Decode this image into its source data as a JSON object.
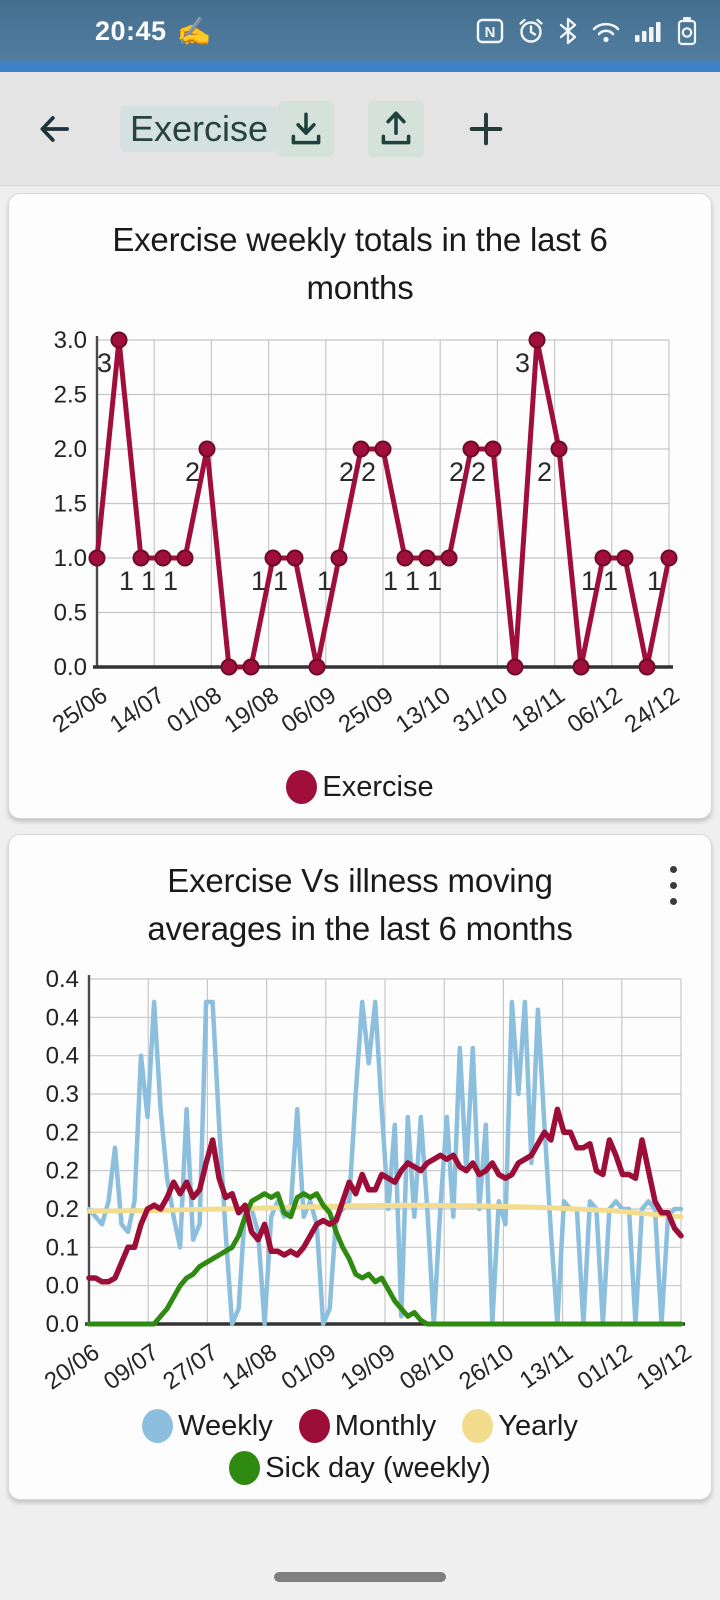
{
  "status_bar": {
    "time": "20:45",
    "hand_icon": "✍",
    "icons": [
      "nfc",
      "alarm",
      "bluetooth",
      "wifi",
      "signal",
      "battery"
    ],
    "bg_color": "#4f7b9e",
    "accent_color": "#3c80c5"
  },
  "app_bar": {
    "title": "Exercise",
    "back_icon": "arrow-left",
    "actions": [
      "download",
      "export",
      "add"
    ]
  },
  "chart_data": [
    {
      "type": "line",
      "title": "Exercise weekly totals in the last 6 months",
      "ylim": [
        0,
        3
      ],
      "y_ticks": [
        3.0,
        2.5,
        2.0,
        1.5,
        1.0,
        0.5,
        0.0
      ],
      "y_tick_labels": [
        "3.0",
        "2.5",
        "2.0",
        "1.5",
        "1.0",
        "0.5",
        "0.0"
      ],
      "x_tick_labels": [
        "25/06",
        "14/07",
        "01/08",
        "19/08",
        "06/09",
        "25/09",
        "13/10",
        "31/10",
        "18/11",
        "06/12",
        "24/12"
      ],
      "grid": true,
      "legend_position": "bottom",
      "point_markers": true,
      "value_labels_on_points": true,
      "series": [
        {
          "name": "Exercise",
          "color": "#a00e3b",
          "values": [
            1,
            3,
            1,
            1,
            1,
            2,
            0,
            0,
            1,
            1,
            0,
            1,
            2,
            2,
            1,
            1,
            1,
            2,
            2,
            0,
            3,
            2,
            0,
            1,
            1,
            0,
            1
          ]
        }
      ]
    },
    {
      "type": "line",
      "title": "Exercise Vs illness moving averages in the last 6 months",
      "ylim": [
        0,
        0.47
      ],
      "y_gridline_values": [
        0.45,
        0.4,
        0.35,
        0.3,
        0.25,
        0.2,
        0.15,
        0.1,
        0.05,
        0.0
      ],
      "y_tick_labels": [
        "0.4",
        "0.4",
        "0.4",
        "0.3",
        "0.2",
        "0.2",
        "0.2",
        "0.1",
        "0.0",
        "0.0"
      ],
      "x_tick_labels": [
        "20/06",
        "09/07",
        "27/07",
        "14/08",
        "01/09",
        "19/09",
        "08/10",
        "26/10",
        "13/11",
        "01/12",
        "19/12"
      ],
      "x_days_range": [
        0,
        182
      ],
      "grid": true,
      "legend_position": "bottom",
      "point_markers": false,
      "draw_order": [
        0,
        2,
        3,
        1
      ],
      "series": [
        {
          "name": "Weekly",
          "color": "#8cbedd",
          "width": 4.5,
          "step_days": 2,
          "values": [
            0.15,
            0.14,
            0.13,
            0.16,
            0.23,
            0.13,
            0.12,
            0.16,
            0.35,
            0.27,
            0.42,
            0.28,
            0.19,
            0.14,
            0.1,
            0.28,
            0.11,
            0.13,
            0.42,
            0.42,
            0.26,
            0.12,
            0.0,
            0.02,
            0.15,
            0.15,
            0.12,
            0.0,
            0.14,
            0.16,
            0.14,
            0.15,
            0.28,
            0.14,
            0.16,
            0.13,
            0.0,
            0.02,
            0.14,
            0.15,
            0.16,
            0.3,
            0.42,
            0.34,
            0.42,
            0.28,
            0.15,
            0.26,
            0.01,
            0.27,
            0.14,
            0.27,
            0.15,
            0.0,
            0.15,
            0.27,
            0.14,
            0.36,
            0.2,
            0.36,
            0.15,
            0.26,
            0.0,
            0.16,
            0.13,
            0.42,
            0.3,
            0.42,
            0.21,
            0.41,
            0.26,
            0.12,
            0.0,
            0.16,
            0.15,
            0.15,
            0.0,
            0.16,
            0.15,
            0.0,
            0.15,
            0.16,
            0.15,
            0.15,
            0.0,
            0.15,
            0.16,
            0.15,
            0.0,
            0.14,
            0.15,
            0.15
          ]
        },
        {
          "name": "Monthly",
          "color": "#9c0e38",
          "width": 5.5,
          "step_days": 2,
          "values": [
            0.06,
            0.06,
            0.055,
            0.055,
            0.06,
            0.08,
            0.1,
            0.1,
            0.13,
            0.15,
            0.155,
            0.15,
            0.165,
            0.185,
            0.17,
            0.185,
            0.165,
            0.175,
            0.21,
            0.24,
            0.19,
            0.165,
            0.17,
            0.145,
            0.155,
            0.12,
            0.11,
            0.13,
            0.095,
            0.095,
            0.09,
            0.095,
            0.09,
            0.1,
            0.115,
            0.13,
            0.135,
            0.13,
            0.135,
            0.16,
            0.185,
            0.17,
            0.195,
            0.175,
            0.175,
            0.195,
            0.19,
            0.185,
            0.2,
            0.21,
            0.205,
            0.2,
            0.21,
            0.215,
            0.22,
            0.215,
            0.22,
            0.205,
            0.2,
            0.21,
            0.195,
            0.2,
            0.21,
            0.195,
            0.19,
            0.195,
            0.21,
            0.215,
            0.22,
            0.235,
            0.25,
            0.24,
            0.28,
            0.25,
            0.25,
            0.23,
            0.23,
            0.235,
            0.2,
            0.195,
            0.24,
            0.22,
            0.195,
            0.195,
            0.19,
            0.24,
            0.2,
            0.16,
            0.145,
            0.145,
            0.125,
            0.115
          ]
        },
        {
          "name": "Yearly",
          "color": "#f2dd8e",
          "width": 5,
          "x": [
            0,
            20,
            40,
            60,
            80,
            100,
            120,
            140,
            160,
            182
          ],
          "values": [
            0.147,
            0.148,
            0.15,
            0.152,
            0.154,
            0.155,
            0.154,
            0.152,
            0.148,
            0.14
          ]
        },
        {
          "name": "Sick day (weekly)",
          "color": "#2f8a11",
          "width": 5,
          "step_days": 2,
          "values": [
            0,
            0,
            0,
            0,
            0,
            0,
            0,
            0,
            0,
            0,
            0,
            0.01,
            0.02,
            0.035,
            0.05,
            0.06,
            0.065,
            0.075,
            0.08,
            0.085,
            0.09,
            0.095,
            0.1,
            0.115,
            0.14,
            0.16,
            0.165,
            0.17,
            0.165,
            0.17,
            0.145,
            0.14,
            0.165,
            0.17,
            0.165,
            0.17,
            0.155,
            0.145,
            0.12,
            0.1,
            0.085,
            0.065,
            0.06,
            0.065,
            0.055,
            0.06,
            0.045,
            0.03,
            0.02,
            0.01,
            0.015,
            0.005,
            0,
            0,
            0,
            0,
            0,
            0,
            0,
            0,
            0,
            0,
            0,
            0,
            0,
            0,
            0,
            0,
            0,
            0,
            0,
            0,
            0,
            0,
            0,
            0,
            0,
            0,
            0,
            0,
            0,
            0,
            0,
            0,
            0,
            0,
            0,
            0,
            0,
            0,
            0,
            0
          ]
        }
      ]
    }
  ]
}
